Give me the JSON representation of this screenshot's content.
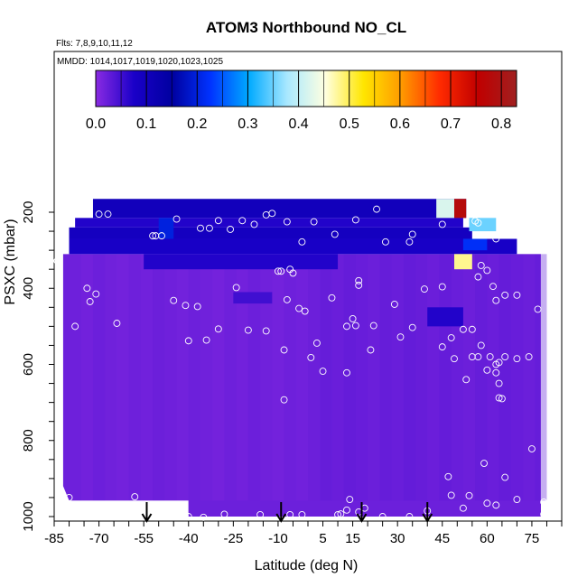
{
  "chart_data": {
    "type": "heatmap",
    "title": "ATOM3 Northbound NO_CL",
    "flights_note": "Flts: 7,8,9,10,11,12",
    "dates_note": "MMDD: 1014,1017,1019,1020,1023,1025",
    "xlabel": "Latitude (deg N)",
    "ylabel": "PSXC (mbar)",
    "xlim": [
      -85,
      85
    ],
    "ylim": [
      1000,
      100
    ],
    "x_ticks": [
      -85,
      -70,
      -55,
      -40,
      -25,
      -10,
      5,
      15,
      30,
      45,
      60,
      75
    ],
    "y_ticks": [
      200,
      400,
      600,
      800,
      1000
    ],
    "colorbar": {
      "range": [
        0.0,
        0.83
      ],
      "ticks": [
        0.0,
        0.1,
        0.2,
        0.3,
        0.4,
        0.5,
        0.6,
        0.7,
        0.8
      ],
      "colors": [
        "#8a2be2",
        "#1a00c8",
        "#0000a0",
        "#0033ff",
        "#00aaff",
        "#a8e8ff",
        "#ffffe0",
        "#ffe600",
        "#ff9900",
        "#ff2a00",
        "#c00000",
        "#a02020"
      ]
    },
    "background_value": 0.02,
    "features": [
      {
        "lat_min": -72,
        "lat_max": 53,
        "p_min": 165,
        "p_max": 215,
        "value": 0.1
      },
      {
        "lat_min": -78,
        "lat_max": 52,
        "p_min": 215,
        "p_max": 240,
        "value": 0.07
      },
      {
        "lat_min": -80,
        "lat_max": 55,
        "p_min": 240,
        "p_max": 270,
        "value": 0.09
      },
      {
        "lat_min": -80,
        "lat_max": 70,
        "p_min": 270,
        "p_max": 310,
        "value": 0.08
      },
      {
        "lat_min": 43,
        "lat_max": 49,
        "p_min": 165,
        "p_max": 215,
        "value": 0.42
      },
      {
        "lat_min": 49,
        "lat_max": 53,
        "p_min": 165,
        "p_max": 215,
        "value": 0.78
      },
      {
        "lat_min": -50,
        "lat_max": -45,
        "p_min": 215,
        "p_max": 270,
        "value": 0.2
      },
      {
        "lat_min": 54,
        "lat_max": 63,
        "p_min": 215,
        "p_max": 250,
        "value": 0.35
      },
      {
        "lat_min": 52,
        "lat_max": 60,
        "p_min": 270,
        "p_max": 300,
        "value": 0.22
      },
      {
        "lat_min": 49,
        "lat_max": 55,
        "p_min": 310,
        "p_max": 350,
        "value": 0.48
      },
      {
        "lat_min": -55,
        "lat_max": 10,
        "p_min": 310,
        "p_max": 350,
        "value": 0.07
      },
      {
        "lat_min": -25,
        "lat_max": -12,
        "p_min": 410,
        "p_max": 440,
        "value": 0.05
      },
      {
        "lat_min": 40,
        "lat_max": 52,
        "p_min": 450,
        "p_max": 500,
        "value": 0.07
      }
    ],
    "data_points": [
      [
        -80,
        220
      ],
      [
        -70,
        205
      ],
      [
        -67,
        205
      ],
      [
        -52,
        262
      ],
      [
        -51,
        262
      ],
      [
        -49,
        262
      ],
      [
        -44,
        218
      ],
      [
        -36,
        242
      ],
      [
        -33,
        242
      ],
      [
        -30,
        222
      ],
      [
        -26,
        245
      ],
      [
        -22,
        222
      ],
      [
        -18,
        232
      ],
      [
        -14,
        207
      ],
      [
        -12,
        203
      ],
      [
        -7,
        225
      ],
      [
        -2,
        278
      ],
      [
        2,
        225
      ],
      [
        9,
        258
      ],
      [
        16,
        220
      ],
      [
        23,
        192
      ],
      [
        26,
        278
      ],
      [
        34,
        278
      ],
      [
        35,
        258
      ],
      [
        45,
        232
      ],
      [
        56,
        223
      ],
      [
        57,
        228
      ],
      [
        63,
        270
      ],
      [
        58,
        340
      ],
      [
        57,
        370
      ],
      [
        60,
        353
      ],
      [
        62,
        395
      ],
      [
        63,
        432
      ],
      [
        66,
        418
      ],
      [
        70,
        418
      ],
      [
        77,
        455
      ],
      [
        -84,
        328
      ],
      [
        -74,
        400
      ],
      [
        -71,
        415
      ],
      [
        -73,
        435
      ],
      [
        -78,
        500
      ],
      [
        -64,
        492
      ],
      [
        -45,
        432
      ],
      [
        -41,
        445
      ],
      [
        -40,
        538
      ],
      [
        -37,
        448
      ],
      [
        -34,
        536
      ],
      [
        -30,
        507
      ],
      [
        -24,
        398
      ],
      [
        -20,
        510
      ],
      [
        -14,
        512
      ],
      [
        -10,
        355
      ],
      [
        -6,
        350
      ],
      [
        -3,
        453
      ],
      [
        -7,
        430
      ],
      [
        3,
        544
      ],
      [
        8,
        425
      ],
      [
        15,
        480
      ],
      [
        16,
        498
      ],
      [
        17,
        380
      ],
      [
        13,
        500
      ],
      [
        17,
        392
      ],
      [
        21,
        562
      ],
      [
        22,
        498
      ],
      [
        29,
        442
      ],
      [
        31,
        528
      ],
      [
        35,
        503
      ],
      [
        39,
        402
      ],
      [
        45,
        554
      ],
      [
        45,
        396
      ],
      [
        48,
        530
      ],
      [
        49,
        585
      ],
      [
        52,
        508
      ],
      [
        55,
        580
      ],
      [
        55,
        508
      ],
      [
        61,
        580
      ],
      [
        57,
        580
      ],
      [
        63,
        600
      ],
      [
        58,
        550
      ],
      [
        64,
        595
      ],
      [
        66,
        580
      ],
      [
        70,
        585
      ],
      [
        74,
        580
      ],
      [
        -5,
        360
      ],
      [
        -9,
        355
      ],
      [
        -1,
        460
      ],
      [
        -8,
        562
      ],
      [
        1,
        582
      ],
      [
        5,
        618
      ],
      [
        13,
        622
      ],
      [
        60,
        615
      ],
      [
        63,
        622
      ],
      [
        64,
        650
      ],
      [
        53,
        640
      ],
      [
        65,
        690
      ],
      [
        -8,
        693
      ],
      [
        64,
        688
      ],
      [
        75,
        822
      ],
      [
        59,
        860
      ],
      [
        66,
        897
      ],
      [
        47,
        895
      ],
      [
        48,
        944
      ],
      [
        54,
        945
      ],
      [
        60,
        965
      ],
      [
        63,
        970
      ],
      [
        70,
        955
      ],
      [
        79,
        962
      ],
      [
        79,
        994
      ],
      [
        -80,
        950
      ],
      [
        -58,
        948
      ],
      [
        14,
        955
      ],
      [
        13,
        983
      ],
      [
        11,
        993
      ],
      [
        17,
        988
      ],
      [
        19,
        978
      ],
      [
        -28,
        994
      ],
      [
        -16,
        995
      ],
      [
        -6,
        995
      ],
      [
        -2,
        995
      ],
      [
        10,
        995
      ],
      [
        25,
        1000
      ],
      [
        34,
        1000
      ],
      [
        40,
        985
      ],
      [
        52,
        978
      ],
      [
        -40,
        1000
      ],
      [
        -35,
        1002
      ]
    ],
    "arrows": [
      -54,
      -9,
      18,
      40
    ]
  }
}
